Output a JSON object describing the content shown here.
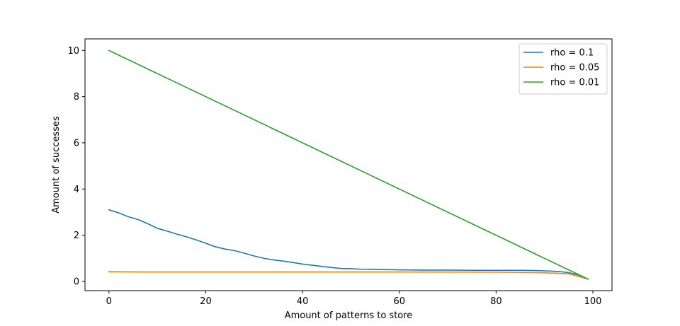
{
  "chart_data": {
    "type": "line",
    "title": "",
    "xlabel": "Amount of patterns to store",
    "ylabel": "Amount of successes",
    "xlim": [
      -4.95,
      103.95
    ],
    "ylim": [
      -0.4,
      10.5
    ],
    "xticks": [
      0,
      20,
      40,
      60,
      80,
      100
    ],
    "yticks": [
      0,
      2,
      4,
      6,
      8,
      10
    ],
    "grid": false,
    "legend_position": "top-right",
    "series": [
      {
        "name": "rho = 0.1",
        "color": "#1f77b4",
        "points": [
          [
            0,
            3.1
          ],
          [
            2,
            2.97
          ],
          [
            4,
            2.8
          ],
          [
            6,
            2.68
          ],
          [
            8,
            2.5
          ],
          [
            10,
            2.3
          ],
          [
            12,
            2.18
          ],
          [
            14,
            2.05
          ],
          [
            16,
            1.93
          ],
          [
            18,
            1.8
          ],
          [
            20,
            1.65
          ],
          [
            22,
            1.5
          ],
          [
            24,
            1.4
          ],
          [
            26,
            1.33
          ],
          [
            28,
            1.22
          ],
          [
            30,
            1.1
          ],
          [
            32,
            1.0
          ],
          [
            34,
            0.93
          ],
          [
            36,
            0.88
          ],
          [
            38,
            0.82
          ],
          [
            40,
            0.75
          ],
          [
            42,
            0.7
          ],
          [
            44,
            0.65
          ],
          [
            46,
            0.6
          ],
          [
            48,
            0.56
          ],
          [
            50,
            0.55
          ],
          [
            52,
            0.53
          ],
          [
            55,
            0.52
          ],
          [
            60,
            0.5
          ],
          [
            65,
            0.49
          ],
          [
            70,
            0.49
          ],
          [
            75,
            0.48
          ],
          [
            80,
            0.48
          ],
          [
            85,
            0.48
          ],
          [
            88,
            0.47
          ],
          [
            91,
            0.45
          ],
          [
            93,
            0.43
          ],
          [
            95,
            0.38
          ],
          [
            97,
            0.28
          ],
          [
            99,
            0.1
          ]
        ]
      },
      {
        "name": "rho = 0.05",
        "color": "#ff7f0e",
        "points": [
          [
            0,
            0.42
          ],
          [
            7,
            0.41
          ],
          [
            20,
            0.41
          ],
          [
            40,
            0.41
          ],
          [
            60,
            0.41
          ],
          [
            80,
            0.4
          ],
          [
            88,
            0.38
          ],
          [
            92,
            0.36
          ],
          [
            95,
            0.33
          ],
          [
            97,
            0.22
          ],
          [
            99,
            0.1
          ]
        ]
      },
      {
        "name": "rho = 0.01",
        "color": "#2ca02c",
        "points": [
          [
            0,
            10.0
          ],
          [
            99,
            0.1
          ]
        ]
      }
    ]
  }
}
